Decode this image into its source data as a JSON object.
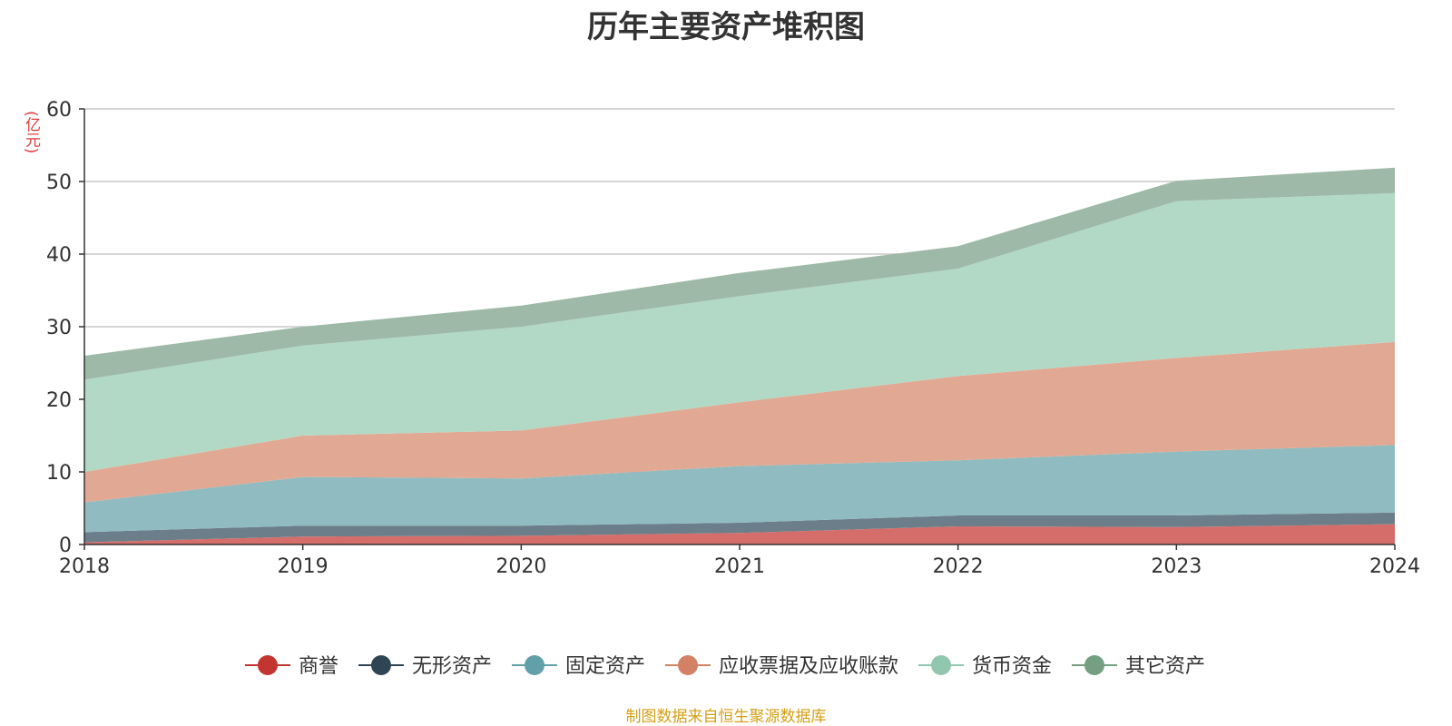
{
  "chart_data": {
    "type": "area",
    "stacked": true,
    "title": "历年主要资产堆积图",
    "unit": "(亿元)",
    "source": "制图数据来自恒生聚源数据库",
    "x": [
      "2018",
      "2019",
      "2020",
      "2021",
      "2022",
      "2023",
      "2024"
    ],
    "ylim": [
      0,
      60
    ],
    "yticks": [
      0,
      10,
      20,
      30,
      40,
      50,
      60
    ],
    "grid": true,
    "legend_position": "bottom",
    "series": [
      {
        "name": "商誉",
        "color": "#c23531",
        "fill": "#d56e6b",
        "values": [
          0.3,
          1.1,
          1.2,
          1.6,
          2.5,
          2.4,
          2.8
        ]
      },
      {
        "name": "无形资产",
        "color": "#2f4554",
        "fill": "#6c7e89",
        "values": [
          1.4,
          1.5,
          1.4,
          1.4,
          1.5,
          1.6,
          1.6
        ]
      },
      {
        "name": "固定资产",
        "color": "#61a0a8",
        "fill": "#90bbc1",
        "values": [
          4.1,
          6.7,
          6.5,
          7.8,
          7.6,
          8.8,
          9.3
        ]
      },
      {
        "name": "应收票据及应收账款",
        "color": "#d48265",
        "fill": "#e1a993",
        "values": [
          4.2,
          5.7,
          6.6,
          8.8,
          11.6,
          12.9,
          14.2
        ]
      },
      {
        "name": "货币资金",
        "color": "#91c7ae",
        "fill": "#b2d9c6",
        "values": [
          12.7,
          12.4,
          14.3,
          14.6,
          14.8,
          21.6,
          20.5
        ]
      },
      {
        "name": "其它资产",
        "color": "#749f83",
        "fill": "#9eb9a7",
        "values": [
          3.3,
          2.6,
          2.9,
          3.2,
          3.1,
          2.8,
          3.5
        ]
      }
    ]
  }
}
